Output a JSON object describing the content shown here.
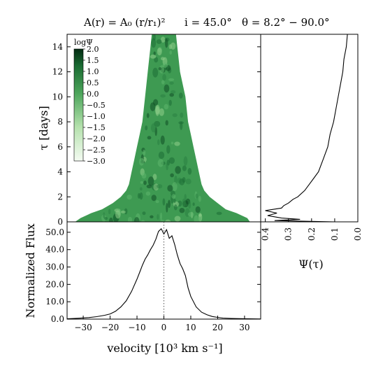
{
  "title": {
    "part1": "A(r) = A₀ (r/r₁)²",
    "part2": "i = 45.0°",
    "part3": "θ = 8.2° − 90.0°"
  },
  "chart_data": [
    {
      "name": "transfer-function-map",
      "type": "heatmap",
      "xlim": [
        -36,
        36
      ],
      "ylim": [
        0,
        15
      ],
      "ylabel": "τ [days]",
      "yticks": [
        0,
        2,
        4,
        6,
        8,
        10,
        12,
        14
      ],
      "colormap": "Greens",
      "colorbar": {
        "label": "logΨ",
        "range": [
          -3.0,
          2.0
        ],
        "ticks": [
          "2.0",
          "1.5",
          "1.0",
          "0.5",
          "0.0",
          "−0.5",
          "−1.0",
          "−1.5",
          "−2.0",
          "−2.5",
          "−3.0"
        ]
      },
      "envelope": {
        "tau": [
          0,
          0.3,
          0.7,
          1.0,
          1.5,
          2.0,
          2.5,
          3.0,
          4.0,
          5.0,
          6.0,
          7.0,
          8.0,
          10.0,
          12.0,
          14.0,
          15.0
        ],
        "v_min": [
          -33,
          -31,
          -27,
          -23,
          -19,
          -16,
          -14,
          -13,
          -12,
          -11,
          -10,
          -9,
          -8,
          -7,
          -6,
          -5,
          -4.5
        ],
        "v_max": [
          32,
          31,
          27,
          23,
          20,
          17,
          15,
          14,
          13,
          12,
          11,
          10,
          9,
          8,
          6,
          5,
          4.5
        ]
      }
    },
    {
      "name": "delay-response",
      "type": "line",
      "xlabel": "Ψ(τ)",
      "xlim": [
        0.42,
        0.0
      ],
      "ylim": [
        0,
        15
      ],
      "xticks": [
        "0.4",
        "0.3",
        "0.2",
        "0.1",
        "0.0"
      ],
      "tau": [
        0,
        0.1,
        0.2,
        0.3,
        0.5,
        0.7,
        0.9,
        1.1,
        1.3,
        1.5,
        1.8,
        2.0,
        2.5,
        3.0,
        3.5,
        4.0,
        5.0,
        6.0,
        7.0,
        8.0,
        9.0,
        10.0,
        11.0,
        12.0,
        13.0,
        14.0,
        15.0
      ],
      "psi": [
        0.1,
        0.36,
        0.25,
        0.33,
        0.39,
        0.35,
        0.4,
        0.33,
        0.32,
        0.3,
        0.28,
        0.26,
        0.23,
        0.21,
        0.19,
        0.17,
        0.15,
        0.13,
        0.12,
        0.105,
        0.095,
        0.085,
        0.075,
        0.065,
        0.06,
        0.05,
        0.045
      ]
    },
    {
      "name": "line-profile",
      "type": "line",
      "xlabel": "velocity [10³ km s⁻¹]",
      "ylabel": "Normalized Flux",
      "xlim": [
        -36,
        36
      ],
      "ylim": [
        0,
        56
      ],
      "xticks": [
        "−30",
        "−20",
        "−10",
        "0",
        "10",
        "20",
        "30"
      ],
      "yticks": [
        "0.0",
        "10.0",
        "20.0",
        "30.0",
        "40.0",
        "50.0"
      ],
      "x": [
        -36,
        -32,
        -28,
        -25,
        -22,
        -20,
        -18,
        -16,
        -14,
        -12,
        -10,
        -9,
        -8,
        -7,
        -6,
        -5,
        -4,
        -3,
        -2,
        -1,
        0,
        1,
        2,
        3,
        4,
        5,
        6,
        7,
        8,
        9,
        10,
        12,
        14,
        16,
        18,
        20,
        22,
        25,
        28,
        32,
        36
      ],
      "y": [
        0.2,
        0.5,
        0.9,
        1.4,
        2.2,
        3.0,
        4.5,
        7.0,
        10.5,
        16.0,
        23.0,
        27.0,
        31.0,
        34.5,
        37.0,
        40.0,
        42.5,
        46.0,
        50.5,
        52.0,
        49.0,
        51.5,
        46.5,
        48.0,
        43.0,
        37.0,
        32.0,
        29.0,
        25.0,
        18.0,
        13.0,
        7.0,
        4.0,
        2.5,
        1.5,
        1.0,
        0.6,
        0.4,
        0.3,
        0.2,
        0.1
      ],
      "reference_line_x": 0
    }
  ]
}
